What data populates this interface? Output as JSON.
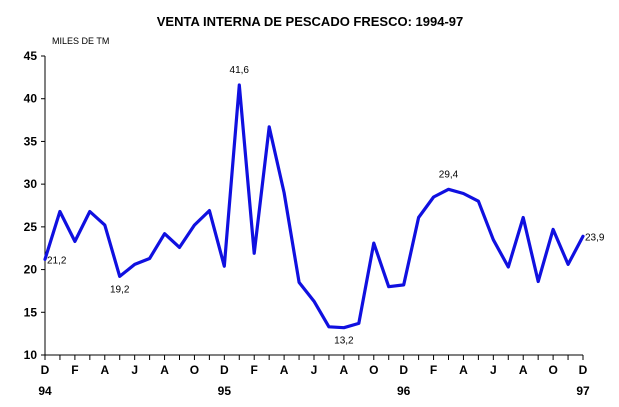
{
  "chart_data": {
    "type": "line",
    "title": "VENTA INTERNA DE PESCADO FRESCO: 1994-97",
    "ylabel": "MILES DE TM",
    "xlabel": "",
    "ylim": [
      10,
      45
    ],
    "yticks": [
      10,
      15,
      20,
      25,
      30,
      35,
      40,
      45
    ],
    "grid": false,
    "legend": "none",
    "series": [
      {
        "name": "Venta interna de pescado fresco",
        "color": "#1010e0",
        "values": [
          21.2,
          26.8,
          23.3,
          26.8,
          25.2,
          19.2,
          20.6,
          21.3,
          24.2,
          22.6,
          25.2,
          26.9,
          20.4,
          41.6,
          21.9,
          36.7,
          29.0,
          18.5,
          16.3,
          13.3,
          13.2,
          13.7,
          23.1,
          18.0,
          18.2,
          26.1,
          28.5,
          29.4,
          28.9,
          28.0,
          23.5,
          20.3,
          26.1,
          18.6,
          24.7,
          20.6,
          23.9
        ]
      }
    ],
    "month_labels": [
      "D",
      "",
      "F",
      "",
      "A",
      "",
      "J",
      "",
      "A",
      "",
      "O",
      "",
      "D",
      "",
      "F",
      "",
      "A",
      "",
      "J",
      "",
      "A",
      "",
      "O",
      "",
      "D",
      "",
      "F",
      "",
      "A",
      "",
      "J",
      "",
      "A",
      "",
      "O",
      "",
      "D"
    ],
    "year_labels": [
      {
        "index": 0,
        "label": "94"
      },
      {
        "index": 12,
        "label": "95"
      },
      {
        "index": 24,
        "label": "96"
      },
      {
        "index": 36,
        "label": "97"
      }
    ],
    "annotations": [
      {
        "index": 0,
        "text": "21,2",
        "position": "right"
      },
      {
        "index": 5,
        "text": "19,2",
        "position": "below"
      },
      {
        "index": 13,
        "text": "41,6",
        "position": "above"
      },
      {
        "index": 20,
        "text": "13,2",
        "position": "below"
      },
      {
        "index": 27,
        "text": "29,4",
        "position": "above"
      },
      {
        "index": 36,
        "text": "23,9",
        "position": "right"
      }
    ]
  }
}
